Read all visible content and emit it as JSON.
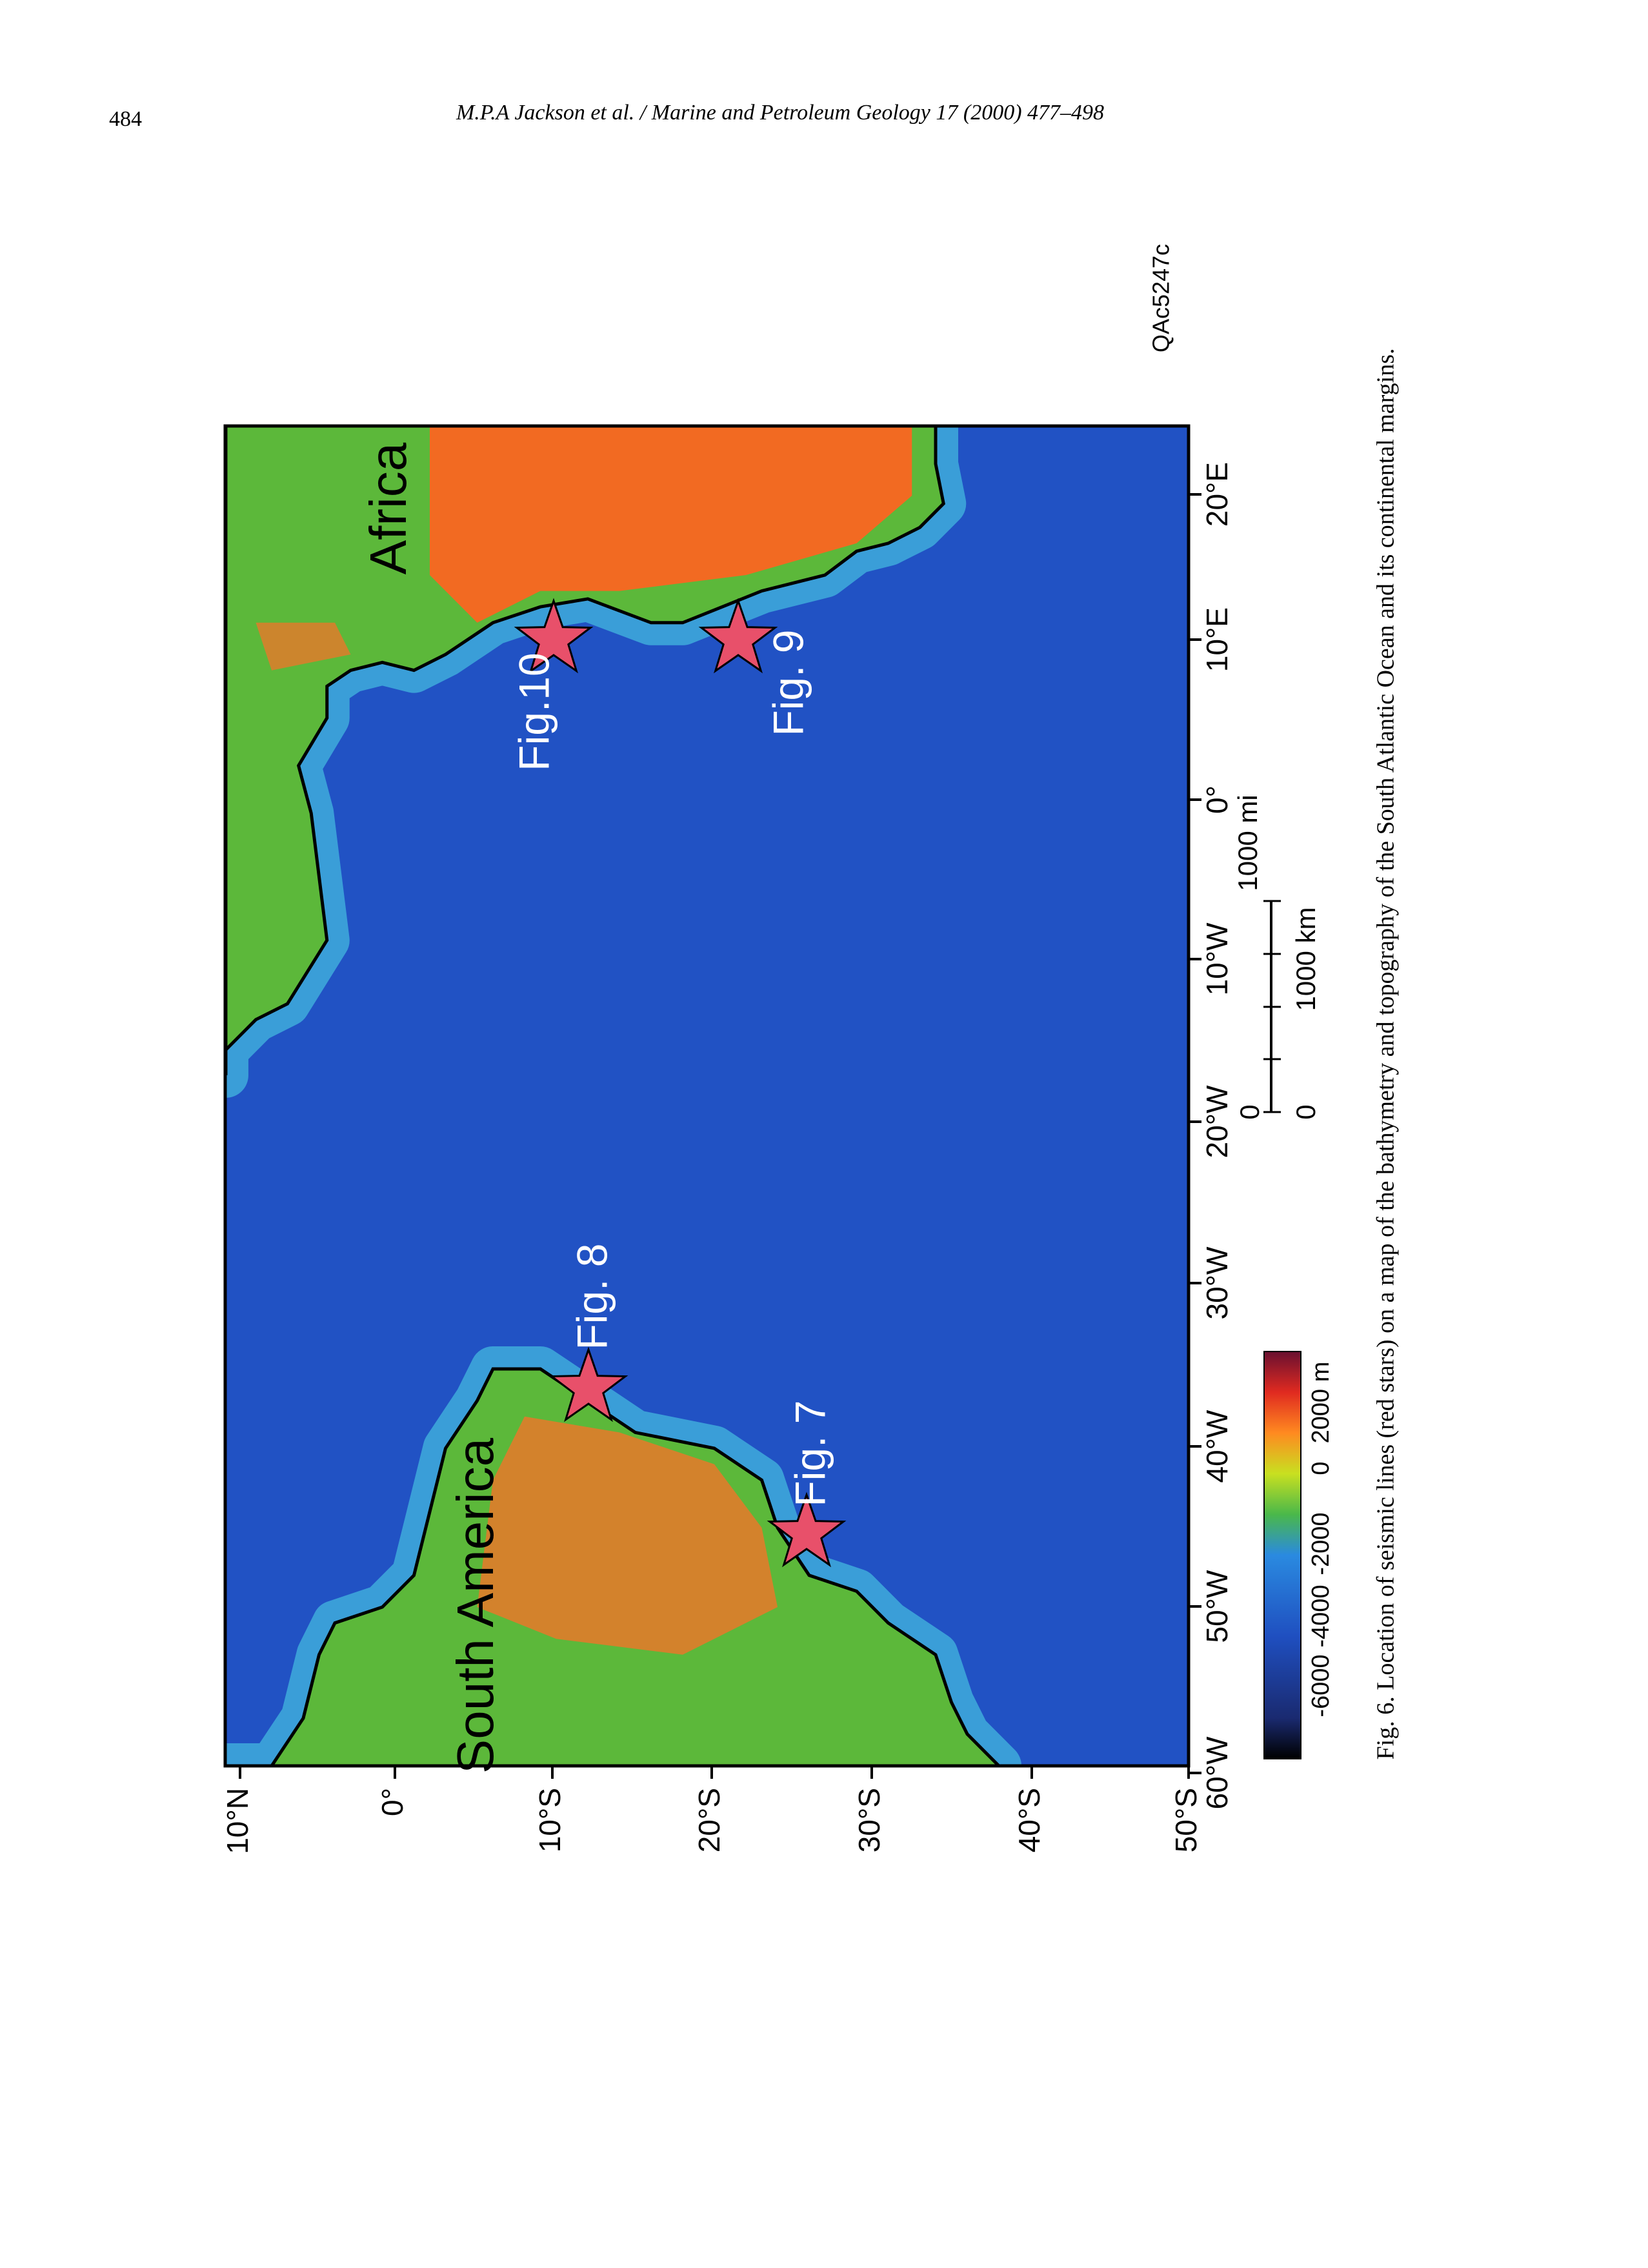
{
  "header": {
    "page_number": "484",
    "running_title": "M.P.A Jackson et al. / Marine and Petroleum Geology 17 (2000) 477–498"
  },
  "figure": {
    "id": "QAc5247c",
    "regions": [
      "Africa",
      "South America"
    ],
    "markers": [
      "Fig.10",
      "Fig. 9",
      "Fig. 8",
      "Fig. 7"
    ],
    "longitude_labels": [
      "60°W",
      "50°W",
      "40°W",
      "30°W",
      "20°W",
      "10°W",
      "0°",
      "10°E",
      "20°E"
    ],
    "latitude_labels": [
      "10°N",
      "0°",
      "10°S",
      "20°S",
      "30°S",
      "40°S",
      "50°S"
    ],
    "scale_bar": {
      "mi_zero": "0",
      "mi": "1000 mi",
      "km_zero": "0",
      "km": "1000 km"
    },
    "color_bar": [
      "-6000",
      "-4000",
      "-2000",
      "0",
      "2000 m"
    ]
  },
  "caption": "Fig. 6. Location of seismic lines (red stars) on a map of the bathymetry and topography of the South Atlantic Ocean and its continental margins."
}
